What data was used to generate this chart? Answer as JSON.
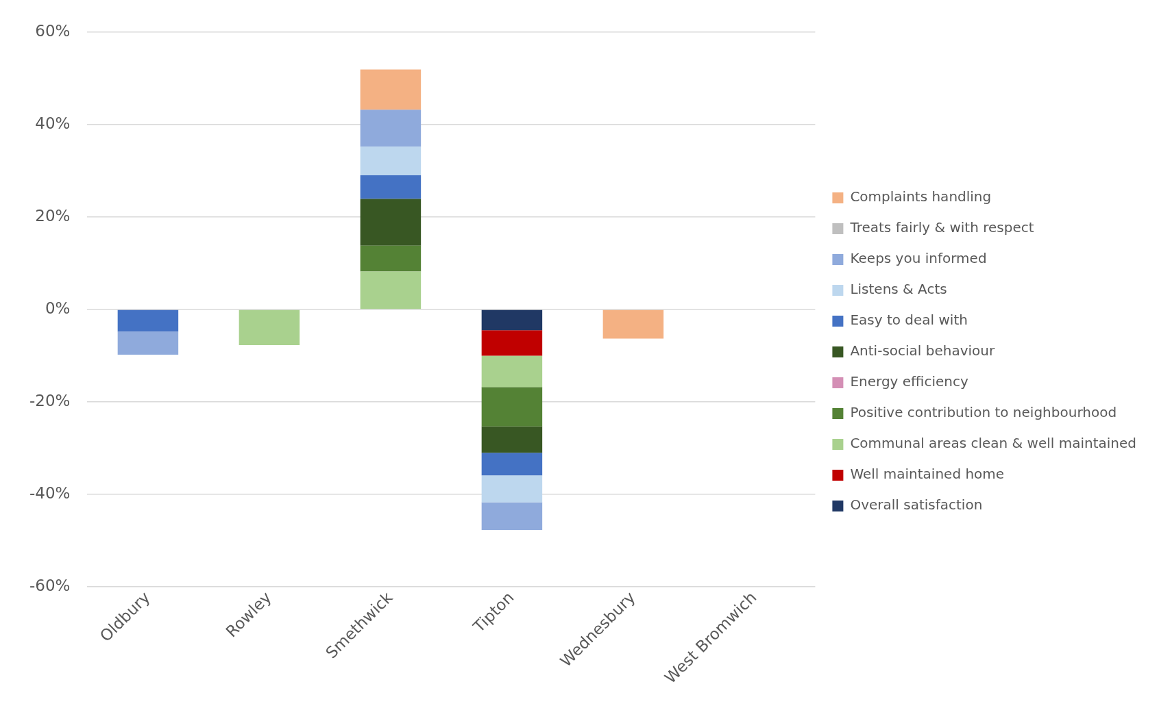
{
  "chart_data": {
    "type": "bar",
    "stacked": true,
    "categories": [
      "Oldbury",
      "Rowley",
      "Smethwick",
      "Tipton",
      "Wednesbury",
      "West Bromwich"
    ],
    "series": [
      {
        "name": "Overall satisfaction",
        "color": "#203864",
        "values": [
          null,
          null,
          null,
          -4.5,
          null,
          null
        ]
      },
      {
        "name": "Well maintained home",
        "color": "#c00000",
        "values": [
          null,
          null,
          null,
          -5.5,
          null,
          null
        ]
      },
      {
        "name": "Communal areas clean & well maintained",
        "color": "#a9d18e",
        "values": [
          null,
          -7.7,
          8.2,
          -6.8,
          null,
          null
        ]
      },
      {
        "name": "Positive contribution to neighbourhood",
        "color": "#548235",
        "values": [
          null,
          null,
          5.6,
          -8.5,
          null,
          null
        ]
      },
      {
        "name": "Energy efficiency",
        "color": "#d48fb5",
        "values": [
          null,
          null,
          null,
          null,
          null,
          null
        ]
      },
      {
        "name": "Anti-social behaviour",
        "color": "#385723",
        "values": [
          null,
          null,
          10.1,
          -5.7,
          null,
          null
        ]
      },
      {
        "name": "Easy to deal with",
        "color": "#4472c4",
        "values": [
          -4.8,
          null,
          5.1,
          -4.9,
          null,
          null
        ]
      },
      {
        "name": "Listens & Acts",
        "color": "#bdd7ee",
        "values": [
          null,
          null,
          6.2,
          -5.8,
          null,
          null
        ]
      },
      {
        "name": "Keeps you informed",
        "color": "#8faadc",
        "values": [
          -5.0,
          null,
          8.0,
          -6.0,
          null,
          null
        ]
      },
      {
        "name": "Treats fairly & with respect",
        "color": "#bfbfbf",
        "values": [
          null,
          null,
          null,
          null,
          null,
          null
        ]
      },
      {
        "name": "Complaints handling",
        "color": "#f4b183",
        "values": [
          null,
          null,
          8.7,
          null,
          -6.3,
          null
        ]
      }
    ],
    "ylim": [
      -60,
      60
    ],
    "yticks": [
      {
        "value": -60,
        "label": "-60%"
      },
      {
        "value": -40,
        "label": "-40%"
      },
      {
        "value": -20,
        "label": "-20%"
      },
      {
        "value": 0,
        "label": "0%"
      },
      {
        "value": 20,
        "label": "20%"
      },
      {
        "value": 40,
        "label": "40%"
      },
      {
        "value": 60,
        "label": "60%"
      }
    ],
    "grid": "y",
    "legend": "right"
  }
}
